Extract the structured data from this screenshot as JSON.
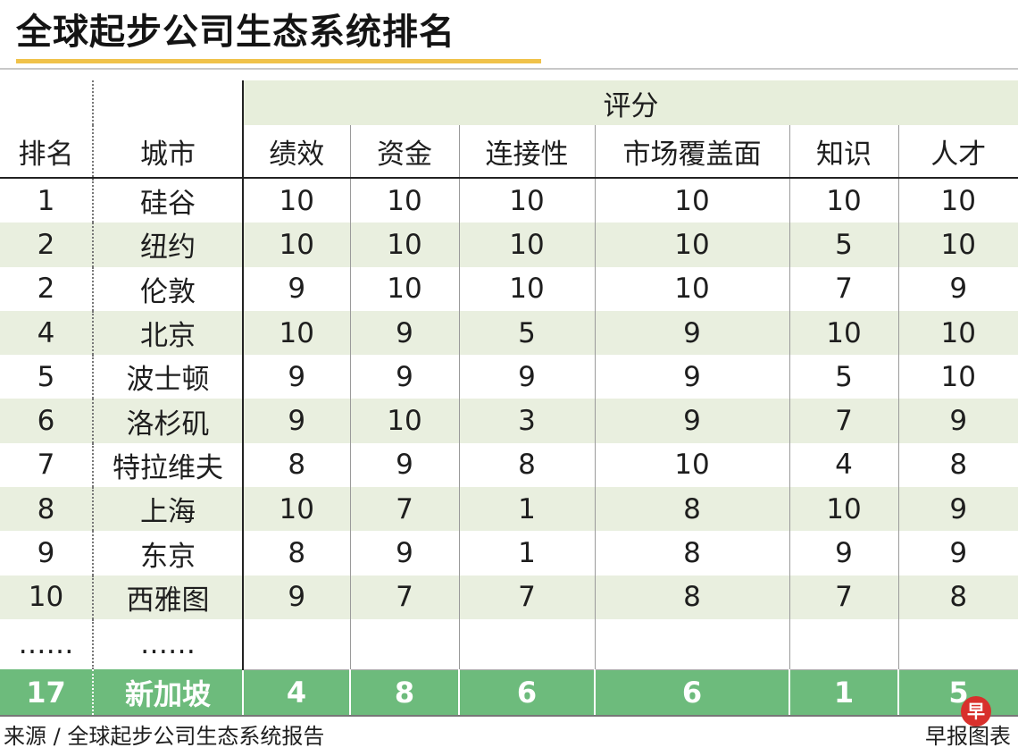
{
  "title": "全球起步公司生态系统排名",
  "columns": {
    "rank": "排名",
    "city": "城市",
    "score_group": "评分",
    "scores": [
      "绩效",
      "资金",
      "连接性",
      "市场覆盖面",
      "知识",
      "人才"
    ]
  },
  "rows": [
    {
      "rank": "1",
      "city": "硅谷",
      "scores": [
        "10",
        "10",
        "10",
        "10",
        "10",
        "10"
      ]
    },
    {
      "rank": "2",
      "city": "纽约",
      "scores": [
        "10",
        "10",
        "10",
        "10",
        "5",
        "10"
      ]
    },
    {
      "rank": "2",
      "city": "伦敦",
      "scores": [
        "9",
        "10",
        "10",
        "10",
        "7",
        "9"
      ]
    },
    {
      "rank": "4",
      "city": "北京",
      "scores": [
        "10",
        "9",
        "5",
        "9",
        "10",
        "10"
      ]
    },
    {
      "rank": "5",
      "city": "波士顿",
      "scores": [
        "9",
        "9",
        "9",
        "9",
        "5",
        "10"
      ]
    },
    {
      "rank": "6",
      "city": "洛杉矶",
      "scores": [
        "9",
        "10",
        "3",
        "9",
        "7",
        "9"
      ]
    },
    {
      "rank": "7",
      "city": "特拉维夫",
      "scores": [
        "8",
        "9",
        "8",
        "10",
        "4",
        "8"
      ]
    },
    {
      "rank": "8",
      "city": "上海",
      "scores": [
        "10",
        "7",
        "1",
        "8",
        "10",
        "9"
      ]
    },
    {
      "rank": "9",
      "city": "东京",
      "scores": [
        "8",
        "9",
        "1",
        "8",
        "9",
        "9"
      ]
    },
    {
      "rank": "10",
      "city": "西雅图",
      "scores": [
        "9",
        "7",
        "7",
        "8",
        "7",
        "8"
      ]
    }
  ],
  "ellipsis": {
    "rank": "……",
    "city": "……"
  },
  "highlight_row": {
    "rank": "17",
    "city": "新加坡",
    "scores": [
      "4",
      "8",
      "6",
      "6",
      "1",
      "5"
    ]
  },
  "footer": {
    "source": "来源 / 全球起步公司生态系统报告",
    "credit": "早报图表",
    "logo_char": "早"
  },
  "colors": {
    "title_underline": "#f0c24a",
    "band": "#e9efdf",
    "highlight": "#6dbb7c",
    "logo": "#d8302c"
  }
}
